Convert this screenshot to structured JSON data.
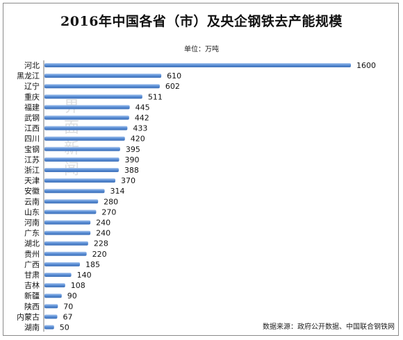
{
  "chart_data": {
    "type": "bar",
    "orientation": "horizontal",
    "title": "2016年中国各省（市）及央企钢铁去产能规模",
    "unit_label": "单位：万吨",
    "source": "数据来源：政府公开数据、中国联合钢铁网",
    "watermark": [
      "界",
      "面",
      "新",
      "闻"
    ],
    "bar_color": "#5b8fd6",
    "categories": [
      "河北",
      "黑龙江",
      "辽宁",
      "重庆",
      "福建",
      "武钢",
      "江西",
      "四川",
      "宝钢",
      "江苏",
      "浙江",
      "天津",
      "安徽",
      "云南",
      "山东",
      "河南",
      "广东",
      "湖北",
      "贵州",
      "广西",
      "甘肃",
      "吉林",
      "新疆",
      "陕西",
      "内蒙古",
      "湖南"
    ],
    "values": [
      1600,
      610,
      602,
      511,
      445,
      442,
      433,
      420,
      395,
      390,
      388,
      370,
      314,
      280,
      270,
      240,
      240,
      228,
      220,
      185,
      140,
      108,
      90,
      70,
      67,
      50
    ],
    "xlim": [
      0,
      1600
    ]
  }
}
